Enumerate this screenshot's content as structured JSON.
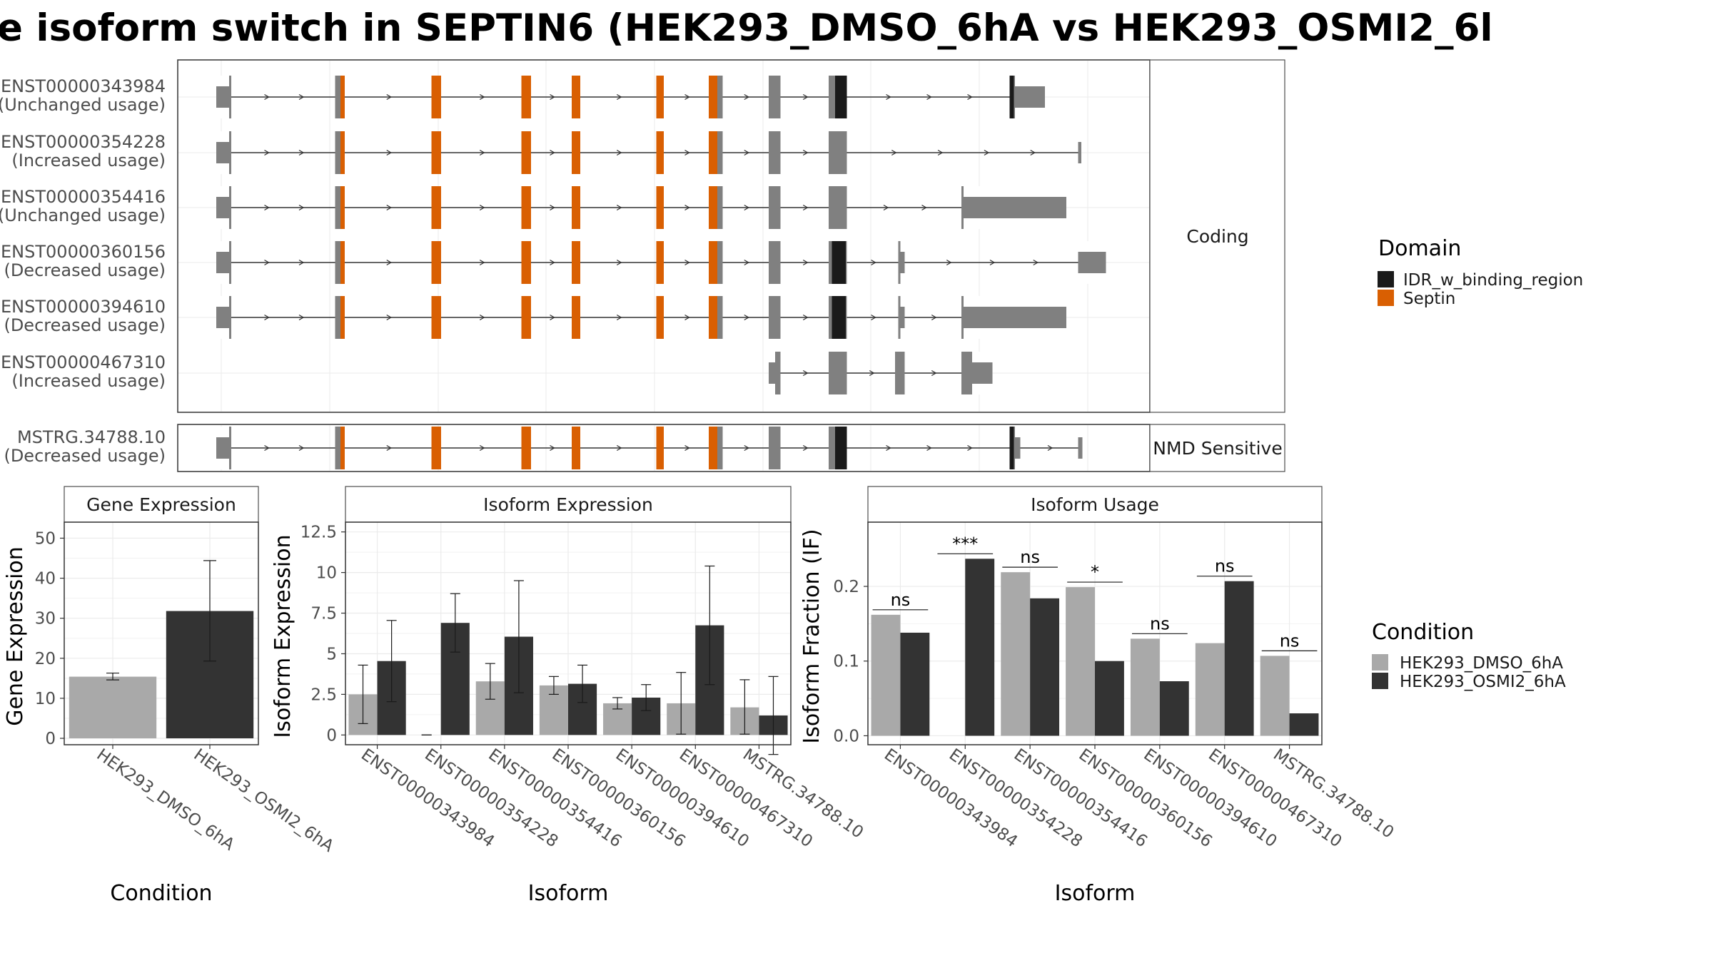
{
  "title": "e isoform switch in SEPTIN6 (HEK293_DMSO_6hA vs HEK293_OSMI2_6l",
  "colors": {
    "exon": "#808080",
    "IDR_w_binding_region": "#1a1a1a",
    "Septin": "#d95f02",
    "dmso": "#a9a9a9",
    "osmi": "#333333"
  },
  "transcripts": {
    "facets": [
      "Coding",
      "NMD Sensitive"
    ],
    "domain_legend": {
      "title": "Domain",
      "items": [
        {
          "name": "IDR_w_binding_region",
          "color": "#1a1a1a"
        },
        {
          "name": "Septin",
          "color": "#d95f02"
        }
      ]
    },
    "tracks": [
      {
        "id": "ENST00000343984",
        "usage": "(Unchanged usage)",
        "group": "Coding",
        "exons": [
          [
            202,
            216
          ],
          [
            313,
            322
          ],
          [
            403,
            412
          ],
          [
            487,
            496
          ],
          [
            534,
            542
          ],
          [
            613,
            620
          ],
          [
            662,
            675
          ],
          [
            718,
            729
          ],
          [
            774,
            791
          ],
          [
            943,
            948
          ],
          [
            948,
            976
          ]
        ],
        "domains": [
          [
            318,
            322,
            "Septin"
          ],
          [
            403,
            412,
            "Septin"
          ],
          [
            487,
            496,
            "Septin"
          ],
          [
            534,
            542,
            "Septin"
          ],
          [
            613,
            620,
            "Septin"
          ],
          [
            662,
            670,
            "Septin"
          ],
          [
            780,
            791,
            "IDR_w_binding_region"
          ],
          [
            943,
            947,
            "IDR_w_binding_region"
          ]
        ],
        "thin": [
          [
            202,
            214
          ],
          [
            948,
            976
          ]
        ]
      },
      {
        "id": "ENST00000354228",
        "usage": "(Increased usage)",
        "group": "Coding",
        "exons": [
          [
            202,
            216
          ],
          [
            313,
            322
          ],
          [
            403,
            412
          ],
          [
            487,
            496
          ],
          [
            534,
            542
          ],
          [
            613,
            620
          ],
          [
            662,
            675
          ],
          [
            718,
            729
          ],
          [
            774,
            791
          ],
          [
            1007,
            1010
          ]
        ],
        "domains": [
          [
            318,
            322,
            "Septin"
          ],
          [
            403,
            412,
            "Septin"
          ],
          [
            487,
            496,
            "Septin"
          ],
          [
            534,
            542,
            "Septin"
          ],
          [
            613,
            620,
            "Septin"
          ],
          [
            662,
            670,
            "Septin"
          ]
        ],
        "thin": [
          [
            202,
            214
          ],
          [
            1007,
            1010
          ]
        ]
      },
      {
        "id": "ENST00000354416",
        "usage": "(Unchanged usage)",
        "group": "Coding",
        "exons": [
          [
            202,
            216
          ],
          [
            313,
            322
          ],
          [
            403,
            412
          ],
          [
            487,
            496
          ],
          [
            534,
            542
          ],
          [
            613,
            620
          ],
          [
            662,
            675
          ],
          [
            718,
            729
          ],
          [
            774,
            791
          ],
          [
            898,
            996
          ]
        ],
        "domains": [
          [
            318,
            322,
            "Septin"
          ],
          [
            403,
            412,
            "Septin"
          ],
          [
            487,
            496,
            "Septin"
          ],
          [
            534,
            542,
            "Septin"
          ],
          [
            613,
            620,
            "Septin"
          ],
          [
            662,
            670,
            "Septin"
          ]
        ],
        "thin": [
          [
            202,
            214
          ],
          [
            900,
            996
          ]
        ]
      },
      {
        "id": "ENST00000360156",
        "usage": "(Decreased usage)",
        "group": "Coding",
        "exons": [
          [
            202,
            216
          ],
          [
            313,
            322
          ],
          [
            403,
            412
          ],
          [
            487,
            496
          ],
          [
            534,
            542
          ],
          [
            613,
            620
          ],
          [
            662,
            675
          ],
          [
            718,
            729
          ],
          [
            774,
            791
          ],
          [
            839,
            845
          ],
          [
            1007,
            1033
          ]
        ],
        "domains": [
          [
            318,
            322,
            "Septin"
          ],
          [
            403,
            412,
            "Septin"
          ],
          [
            487,
            496,
            "Septin"
          ],
          [
            534,
            542,
            "Septin"
          ],
          [
            613,
            620,
            "Septin"
          ],
          [
            662,
            670,
            "Septin"
          ],
          [
            777,
            790,
            "IDR_w_binding_region"
          ]
        ],
        "thin": [
          [
            202,
            214
          ],
          [
            841,
            845
          ],
          [
            1007,
            1033
          ]
        ]
      },
      {
        "id": "ENST00000394610",
        "usage": "(Decreased usage)",
        "group": "Coding",
        "exons": [
          [
            202,
            216
          ],
          [
            313,
            322
          ],
          [
            403,
            412
          ],
          [
            487,
            496
          ],
          [
            534,
            542
          ],
          [
            613,
            620
          ],
          [
            662,
            675
          ],
          [
            718,
            729
          ],
          [
            774,
            791
          ],
          [
            839,
            845
          ],
          [
            898,
            996
          ]
        ],
        "domains": [
          [
            318,
            322,
            "Septin"
          ],
          [
            403,
            412,
            "Septin"
          ],
          [
            487,
            496,
            "Septin"
          ],
          [
            534,
            542,
            "Septin"
          ],
          [
            613,
            620,
            "Septin"
          ],
          [
            662,
            670,
            "Septin"
          ],
          [
            777,
            790,
            "IDR_w_binding_region"
          ]
        ],
        "thin": [
          [
            202,
            214
          ],
          [
            841,
            845
          ],
          [
            900,
            996
          ]
        ]
      },
      {
        "id": "ENST00000467310",
        "usage": "(Increased usage)",
        "group": "Coding",
        "exons": [
          [
            718,
            729
          ],
          [
            774,
            791
          ],
          [
            836,
            845
          ],
          [
            898,
            927
          ]
        ],
        "domains": [],
        "thin": [
          [
            718,
            724
          ],
          [
            908,
            927
          ]
        ]
      },
      {
        "id": "MSTRG.34788.10",
        "usage": "(Decreased usage)",
        "group": "NMD Sensitive",
        "exons": [
          [
            202,
            216
          ],
          [
            313,
            322
          ],
          [
            403,
            412
          ],
          [
            487,
            496
          ],
          [
            534,
            542
          ],
          [
            613,
            620
          ],
          [
            662,
            675
          ],
          [
            718,
            729
          ],
          [
            774,
            791
          ],
          [
            943,
            953
          ],
          [
            1007,
            1011
          ]
        ],
        "domains": [
          [
            318,
            322,
            "Septin"
          ],
          [
            403,
            412,
            "Septin"
          ],
          [
            487,
            496,
            "Septin"
          ],
          [
            534,
            542,
            "Septin"
          ],
          [
            613,
            620,
            "Septin"
          ],
          [
            662,
            670,
            "Septin"
          ],
          [
            780,
            791,
            "IDR_w_binding_region"
          ],
          [
            943,
            947,
            "IDR_w_binding_region"
          ]
        ],
        "thin": [
          [
            202,
            214
          ],
          [
            948,
            953
          ],
          [
            1007,
            1011
          ]
        ]
      }
    ]
  },
  "chart_data": [
    {
      "type": "bar",
      "title": "Gene Expression",
      "xlabel": "Condition",
      "ylabel": "Gene Expression",
      "categories": [
        "HEK293_DMSO_6hA",
        "HEK293_OSMI2_6hA"
      ],
      "values": [
        15.4,
        31.8
      ],
      "error_low": [
        14.6,
        19.3
      ],
      "error_high": [
        16.3,
        44.4
      ],
      "ylim": [
        -1.6,
        54
      ],
      "yticks": [
        0,
        10,
        20,
        30,
        40,
        50
      ]
    },
    {
      "type": "bar",
      "title": "Isoform Expression",
      "xlabel": "Isoform",
      "ylabel": "Isoform Expression",
      "categories": [
        "ENST00000343984",
        "ENST00000354228",
        "ENST00000354416",
        "ENST00000360156",
        "ENST00000394610",
        "ENST00000467310",
        "MSTRG.34788.10"
      ],
      "series": [
        {
          "name": "HEK293_DMSO_6hA",
          "values": [
            2.5,
            0.0,
            3.3,
            3.05,
            1.95,
            1.95,
            1.7
          ],
          "error_low": [
            0.7,
            0.0,
            2.2,
            2.5,
            1.6,
            0.05,
            0.05
          ],
          "error_high": [
            4.3,
            0.0,
            4.4,
            3.6,
            2.3,
            3.85,
            3.4
          ]
        },
        {
          "name": "HEK293_OSMI2_6hA",
          "values": [
            4.55,
            6.9,
            6.05,
            3.15,
            2.3,
            6.75,
            1.2
          ],
          "error_low": [
            2.05,
            5.1,
            2.6,
            2.0,
            1.5,
            3.1,
            -1.2
          ],
          "error_high": [
            7.05,
            8.7,
            9.5,
            4.3,
            3.1,
            10.4,
            3.6
          ]
        }
      ],
      "ylim": [
        -0.6,
        13.1
      ],
      "yticks": [
        0.0,
        2.5,
        5.0,
        7.5,
        10.0,
        12.5
      ]
    },
    {
      "type": "bar",
      "title": "Isoform Usage",
      "xlabel": "Isoform",
      "ylabel": "Isoform Fraction (IF)",
      "categories": [
        "ENST00000343984",
        "ENST00000354228",
        "ENST00000354416",
        "ENST00000360156",
        "ENST00000394610",
        "ENST00000467310",
        "MSTRG.34788.10"
      ],
      "series": [
        {
          "name": "HEK293_DMSO_6hA",
          "values": [
            0.162,
            0.0,
            0.219,
            0.199,
            0.13,
            0.124,
            0.107
          ]
        },
        {
          "name": "HEK293_OSMI2_6hA",
          "values": [
            0.138,
            0.237,
            0.184,
            0.1,
            0.073,
            0.207,
            0.03
          ]
        }
      ],
      "significance": [
        "ns",
        "***",
        "ns",
        "*",
        "ns",
        "ns",
        "ns"
      ],
      "ylim": [
        -0.012,
        0.286
      ],
      "yticks": [
        "0.0",
        "0.1",
        "0.2"
      ],
      "legend": {
        "title": "Condition",
        "position": "right"
      }
    }
  ]
}
